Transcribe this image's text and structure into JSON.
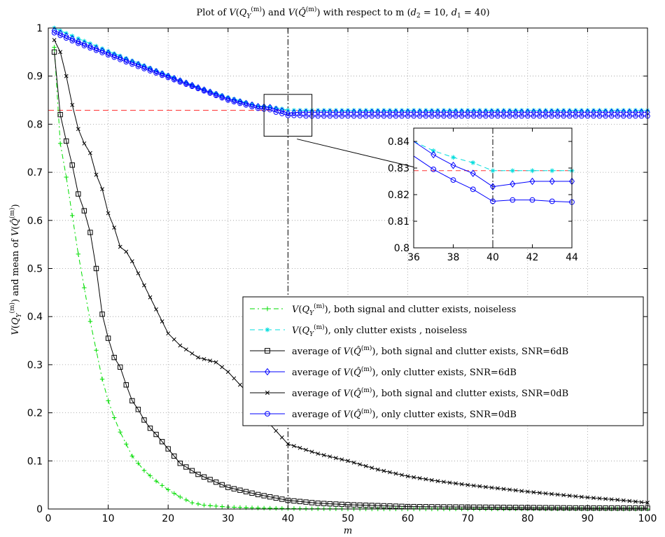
{
  "chart_data": [
    {
      "type": "line",
      "title": "Plot of V(Q_Y^(m)) and V(Q̂^(m)) with respect to m (d2 = 10, d1 = 40)",
      "xlabel": "m",
      "ylabel": "V(Q_Y^(m)) and mean of V(Q̂^(m))",
      "xlim": [
        0,
        100
      ],
      "ylim": [
        0,
        1
      ],
      "xticks": [
        "0",
        "10",
        "20",
        "30",
        "40",
        "50",
        "60",
        "70",
        "80",
        "90",
        "100"
      ],
      "yticks": [
        "0",
        "0.1",
        "0.2",
        "0.3",
        "0.4",
        "0.5",
        "0.6",
        "0.7",
        "0.8",
        "0.9",
        "1"
      ],
      "grid": true,
      "legend_position": "center-right",
      "reference_lines": {
        "vertical_x": 40,
        "horizontal_y": 0.829
      },
      "series": [
        {
          "name": "V(Q_Y^(m)), both signal and clutter exists, noiseless",
          "color": "#00dd00",
          "style": "dash-dot",
          "marker": "plus",
          "x": [
            1,
            2,
            3,
            4,
            5,
            6,
            7,
            8,
            9,
            10,
            11,
            12,
            14,
            16,
            18,
            20,
            22,
            24,
            26,
            30,
            35,
            40,
            45,
            50,
            100
          ],
          "y": [
            0.96,
            0.76,
            0.69,
            0.61,
            0.53,
            0.46,
            0.39,
            0.33,
            0.27,
            0.225,
            0.19,
            0.16,
            0.11,
            0.08,
            0.058,
            0.04,
            0.025,
            0.013,
            0.008,
            0.004,
            0.002,
            0.001,
            0.0005,
            0.0002,
            0.0
          ]
        },
        {
          "name": "V(Q_Y^(m)), only clutter exists , noiseless",
          "color": "#00dddd",
          "style": "dashed",
          "marker": "star",
          "x": [
            1,
            5,
            10,
            15,
            20,
            25,
            30,
            35,
            37,
            38,
            39,
            40,
            45,
            50,
            60,
            70,
            80,
            90,
            100
          ],
          "y": [
            1.0,
            0.978,
            0.952,
            0.927,
            0.902,
            0.877,
            0.856,
            0.838,
            0.836,
            0.834,
            0.832,
            0.829,
            0.829,
            0.829,
            0.829,
            0.829,
            0.829,
            0.829,
            0.829
          ]
        },
        {
          "name": "average of V(Q̂^(m)), both signal and clutter exists, SNR=6dB",
          "color": "#000000",
          "style": "solid",
          "marker": "square",
          "x": [
            1,
            2,
            3,
            4,
            5,
            6,
            7,
            8,
            9,
            10,
            11,
            12,
            13,
            14,
            15,
            16,
            17,
            18,
            20,
            22,
            25,
            30,
            35,
            40,
            45,
            50,
            55,
            60,
            70,
            80,
            90,
            100
          ],
          "y": [
            0.95,
            0.82,
            0.765,
            0.715,
            0.655,
            0.62,
            0.575,
            0.5,
            0.405,
            0.355,
            0.315,
            0.295,
            0.258,
            0.225,
            0.207,
            0.185,
            0.168,
            0.155,
            0.125,
            0.095,
            0.072,
            0.045,
            0.03,
            0.018,
            0.012,
            0.009,
            0.007,
            0.005,
            0.004,
            0.003,
            0.002,
            0.002
          ]
        },
        {
          "name": "average of V(Q̂^(m)), only clutter exists, SNR=6dB",
          "color": "#0000ff",
          "style": "solid",
          "marker": "diamond",
          "x": [
            1,
            5,
            10,
            15,
            20,
            25,
            30,
            35,
            37,
            38,
            39,
            40,
            41,
            42,
            43,
            44,
            50,
            60,
            70,
            80,
            90,
            100
          ],
          "y": [
            0.995,
            0.972,
            0.948,
            0.924,
            0.9,
            0.876,
            0.853,
            0.837,
            0.835,
            0.831,
            0.828,
            0.823,
            0.824,
            0.825,
            0.825,
            0.825,
            0.825,
            0.825,
            0.825,
            0.825,
            0.825,
            0.825
          ]
        },
        {
          "name": "average of V(Q̂^(m)), both signal and clutter exists, SNR=0dB",
          "color": "#000000",
          "style": "solid",
          "marker": "cross",
          "x": [
            1,
            2,
            3,
            4,
            5,
            6,
            7,
            8,
            9,
            10,
            11,
            12,
            13,
            14,
            15,
            16,
            17,
            18,
            19,
            20,
            22,
            25,
            28,
            30,
            33,
            36,
            40,
            45,
            50,
            55,
            60,
            65,
            70,
            75,
            80,
            85,
            90,
            95,
            100
          ],
          "y": [
            0.975,
            0.95,
            0.9,
            0.84,
            0.79,
            0.76,
            0.74,
            0.695,
            0.665,
            0.615,
            0.585,
            0.545,
            0.535,
            0.515,
            0.49,
            0.465,
            0.44,
            0.415,
            0.39,
            0.365,
            0.34,
            0.315,
            0.305,
            0.285,
            0.245,
            0.19,
            0.135,
            0.115,
            0.1,
            0.082,
            0.068,
            0.058,
            0.05,
            0.043,
            0.036,
            0.03,
            0.024,
            0.019,
            0.013
          ]
        },
        {
          "name": "average of V(Q̂^(m)), only clutter exists, SNR=0dB",
          "color": "#0000ff",
          "style": "solid",
          "marker": "circle",
          "x": [
            1,
            5,
            10,
            15,
            20,
            25,
            30,
            35,
            37,
            38,
            39,
            40,
            41,
            42,
            43,
            44,
            50,
            60,
            70,
            80,
            90,
            100
          ],
          "y": [
            0.99,
            0.968,
            0.944,
            0.92,
            0.897,
            0.874,
            0.85,
            0.833,
            0.83,
            0.825,
            0.822,
            0.818,
            0.818,
            0.818,
            0.817,
            0.817,
            0.817,
            0.817,
            0.817,
            0.817,
            0.817,
            0.817
          ]
        }
      ]
    },
    {
      "type": "line",
      "title": "",
      "xlim": [
        36,
        44
      ],
      "ylim": [
        0.8,
        0.845
      ],
      "xticks": [
        "36",
        "38",
        "40",
        "42",
        "44"
      ],
      "yticks": [
        "0.8",
        "0.81",
        "0.82",
        "0.83",
        "0.84"
      ],
      "grid": false,
      "reference_lines": {
        "vertical_x": 40,
        "horizontal_y": 0.829
      },
      "series": [
        {
          "name": "V(Q_Y^(m)), only clutter exists , noiseless",
          "color": "#00dddd",
          "style": "dashed",
          "marker": "star",
          "x": [
            36,
            37,
            38,
            39,
            40,
            41,
            42,
            43,
            44
          ],
          "y": [
            0.84,
            0.8365,
            0.834,
            0.832,
            0.829,
            0.829,
            0.829,
            0.829,
            0.829
          ]
        },
        {
          "name": "average of V(Q̂^(m)), only clutter exists, SNR=6dB",
          "color": "#0000ff",
          "style": "solid",
          "marker": "diamond",
          "x": [
            36,
            37,
            38,
            39,
            40,
            41,
            42,
            43,
            44
          ],
          "y": [
            0.84,
            0.835,
            0.831,
            0.828,
            0.823,
            0.824,
            0.825,
            0.825,
            0.825
          ]
        },
        {
          "name": "average of V(Q̂^(m)), only clutter exists, SNR=0dB",
          "color": "#0000ff",
          "style": "solid",
          "marker": "circle",
          "x": [
            36,
            37,
            38,
            39,
            40,
            41,
            42,
            43,
            44
          ],
          "y": [
            0.8345,
            0.8295,
            0.8255,
            0.822,
            0.8175,
            0.818,
            0.818,
            0.8175,
            0.8172
          ]
        }
      ]
    }
  ],
  "title_parts": {
    "prefix": "Plot of ",
    "mid1": " and ",
    "mid2": " with respect to m (",
    "d2": "10",
    "d1": "40",
    "suffix": ")"
  },
  "ylabel_parts": {
    "mid": " and mean of "
  },
  "legend": [
    {
      "sym": "QY",
      "text": ", both signal and clutter exists, noiseless"
    },
    {
      "sym": "QY",
      "text": ", only clutter exists , noiseless"
    },
    {
      "pre": "average of ",
      "sym": "QH",
      "text": ", both signal and clutter exists, SNR=6dB"
    },
    {
      "pre": "average of ",
      "sym": "QH",
      "text": ", only clutter exists, SNR=6dB"
    },
    {
      "pre": "average of ",
      "sym": "QH",
      "text": ", both signal and clutter exists, SNR=0dB"
    },
    {
      "pre": "average of ",
      "sym": "QH",
      "text": ", only clutter exists, SNR=0dB"
    }
  ]
}
